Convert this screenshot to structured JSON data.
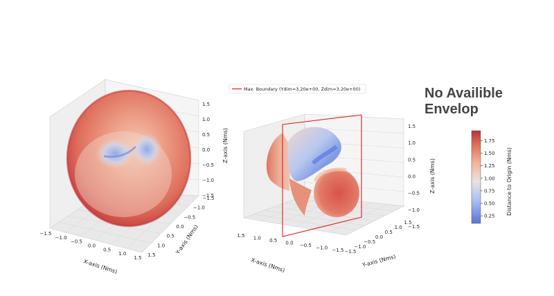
{
  "note": {
    "line1": "No Availible",
    "line2": "Envelop"
  },
  "colors": {
    "boundary": "#e41a1c",
    "pane": "#f2f2f2",
    "grid": "#cfcfcf"
  },
  "chart_data": [
    {
      "type": "scatter3d",
      "title": "",
      "xlabel": "X-axis (Nms)",
      "ylabel": "Y-axis (Nms)",
      "zlabel": "Z-axis (Nms)",
      "xlim": [
        -1.5,
        1.5
      ],
      "ylim": [
        -1.5,
        1.5
      ],
      "zlim": [
        -1.5,
        1.5
      ],
      "xticks": [
        "−1.5",
        "−1.0",
        "−0.5",
        "0.0",
        "0.5",
        "1.0",
        "1.5"
      ],
      "yticks": [
        "1.5",
        "1.0",
        "0.5",
        "0.0",
        "−0.5",
        "−1.0",
        "−1.5"
      ],
      "zticks": [
        "1.5",
        "1.0",
        "0.5",
        "0.0",
        "−0.5",
        "−1.0",
        "−1.5"
      ],
      "surface": "momentum envelope, distance to origin 0.1–1.95 Nms",
      "grid": true
    },
    {
      "type": "scatter3d",
      "title": "",
      "xlabel": "X-axis (Nms)",
      "ylabel": "Y-axis (Nms)",
      "zlabel": "Z-axis (Nms)",
      "xlim": [
        -1.5,
        1.5
      ],
      "ylim": [
        -1.5,
        1.5
      ],
      "zlim": [
        -1.5,
        1.5
      ],
      "xticks": [
        "1.5",
        "1.0",
        "0.5",
        "0.0",
        "−0.5",
        "−1.0",
        "−1.5"
      ],
      "yticks": [
        "−1.5",
        "−1.0",
        "−0.5",
        "0.0",
        "0.5",
        "1.0",
        "1.5"
      ],
      "zticks": [
        "1.5",
        "1.0",
        "0.5",
        "0.0",
        "−0.5",
        "−1.0",
        "−1.5"
      ],
      "legend": {
        "label": "Max. Boundary (Ydim=3.20e+00, Zdim=3.20e+00)",
        "placement": "top"
      },
      "boundary": {
        "ydim": 3.2,
        "zdim": 3.2
      },
      "grid": true
    },
    {
      "type": "colorbar",
      "label": "Distance to Origin (Nms)",
      "ticks": [
        0.25,
        0.5,
        0.75,
        1.0,
        1.25,
        1.5,
        1.75
      ],
      "tick_labels": [
        "0.25",
        "0.50",
        "0.75",
        "1.00",
        "1.25",
        "1.50",
        "1.75"
      ],
      "min": 0.1,
      "max": 1.95,
      "colormap": "coolwarm"
    }
  ]
}
